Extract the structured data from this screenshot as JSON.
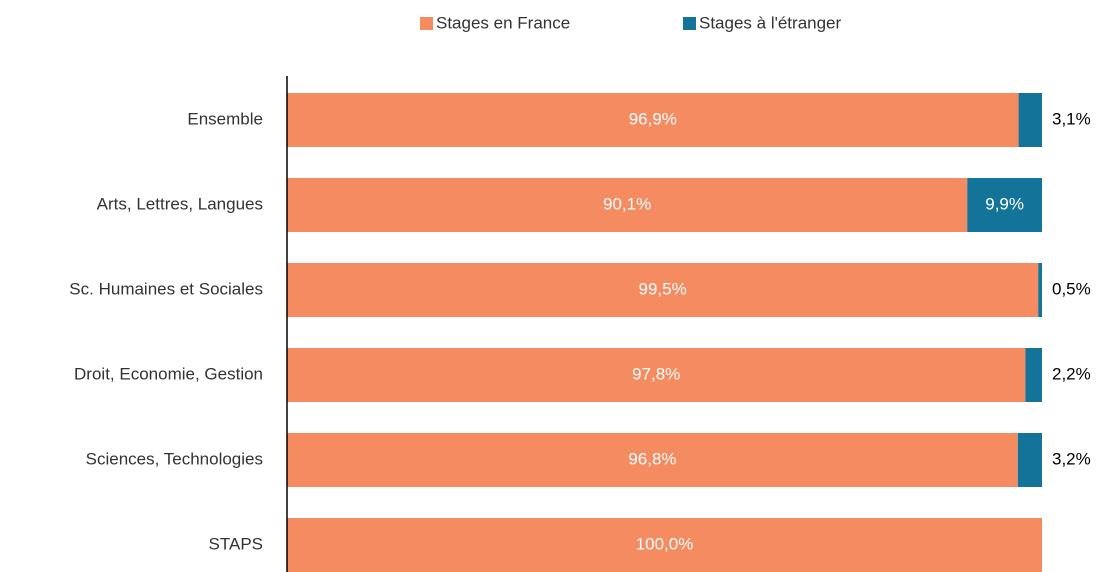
{
  "chart_data": {
    "type": "stacked-barh",
    "categories": [
      "Ensemble",
      "Arts, Lettres, Langues",
      "Sc. Humaines et Sociales",
      "Droit, Economie, Gestion",
      "Sciences, Technologies",
      "STAPS"
    ],
    "series": [
      {
        "name": "Stages en France",
        "color": "#f58b61",
        "values": [
          96.9,
          90.1,
          99.5,
          97.8,
          96.8,
          100.0
        ],
        "value_labels": [
          "96,9%",
          "90,1%",
          "99,5%",
          "97,8%",
          "96,8%",
          "100,0%"
        ]
      },
      {
        "name": "Stages à l'étranger",
        "color": "#147399",
        "values": [
          3.1,
          9.9,
          0.5,
          2.2,
          3.2,
          0
        ],
        "value_labels": [
          "3,1%",
          "9,9%",
          "0,5%",
          "2,2%",
          "3,2%",
          null
        ]
      }
    ],
    "xlim": [
      0,
      100
    ],
    "legend": "top"
  }
}
